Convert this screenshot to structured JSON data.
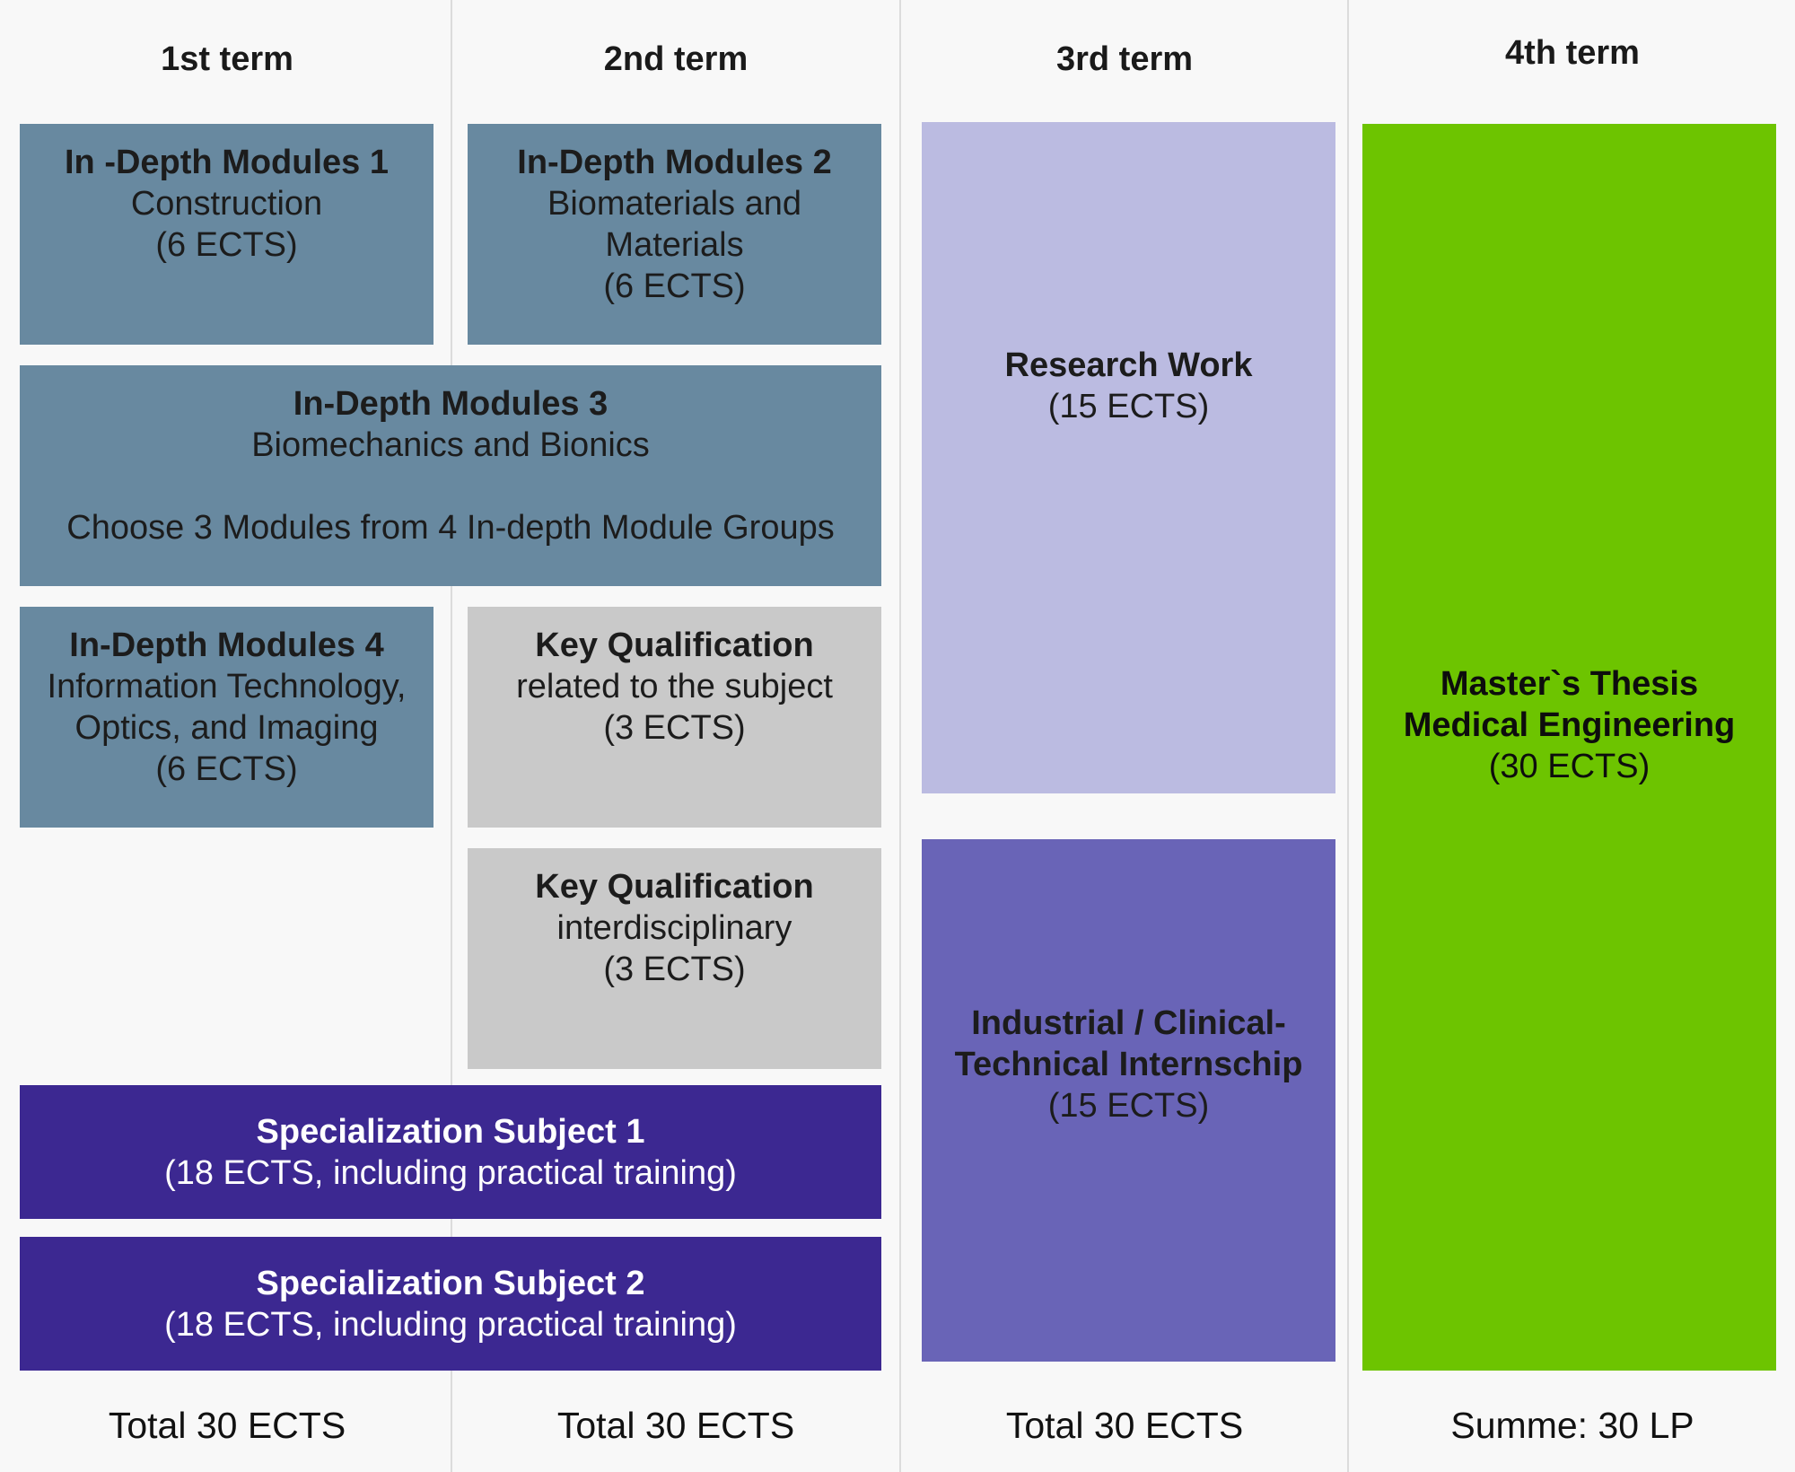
{
  "terms": [
    {
      "header": "1st term",
      "total": "Total 30 ECTS"
    },
    {
      "header": "2nd term",
      "total": "Total 30 ECTS"
    },
    {
      "header": "3rd term",
      "total": "Total 30 ECTS"
    },
    {
      "header": "4th term",
      "total": "Summe: 30 LP"
    }
  ],
  "modules": {
    "in_depth_1": {
      "title": "In -Depth Modules 1",
      "lines": [
        "Construction",
        "(6 ECTS)"
      ]
    },
    "in_depth_2": {
      "title": "In-Depth Modules 2",
      "lines": [
        "Biomaterials and",
        "Materials",
        "(6 ECTS)"
      ]
    },
    "in_depth_3": {
      "title": "In-Depth Modules 3",
      "lines": [
        "Biomechanics and Bionics"
      ],
      "note": "Choose 3 Modules from 4 In-depth Module Groups"
    },
    "in_depth_4": {
      "title": "In-Depth Modules 4",
      "lines": [
        "Information Technology,",
        "Optics, and Imaging",
        "(6 ECTS)"
      ]
    },
    "key_qual_subject": {
      "title": "Key Qualification",
      "lines": [
        "related to the subject",
        "(3 ECTS)"
      ]
    },
    "key_qual_inter": {
      "title": "Key Qualification",
      "lines": [
        "interdisciplinary",
        "(3 ECTS)"
      ]
    },
    "specialization_1": {
      "title": "Specialization Subject 1",
      "lines": [
        "(18 ECTS, including practical training)"
      ]
    },
    "specialization_2": {
      "title": "Specialization Subject 2",
      "lines": [
        "(18 ECTS, including practical training)"
      ]
    },
    "research_work": {
      "title": "Research Work",
      "lines": [
        "(15 ECTS)"
      ]
    },
    "internship": {
      "title_lines": [
        "Industrial / Clinical-",
        "Technical Internschip"
      ],
      "lines": [
        "(15 ECTS)"
      ]
    },
    "thesis": {
      "title_lines": [
        "Master`s Thesis",
        "Medical Engineering"
      ],
      "lines": [
        "(30 ECTS)"
      ]
    }
  },
  "colors": {
    "in_depth": "#6889a0",
    "key_qualification": "#c9c9c9",
    "specialization": "#3c2891",
    "research": "#bbbbe1",
    "internship": "#6964b7",
    "thesis": "#6dc400"
  }
}
